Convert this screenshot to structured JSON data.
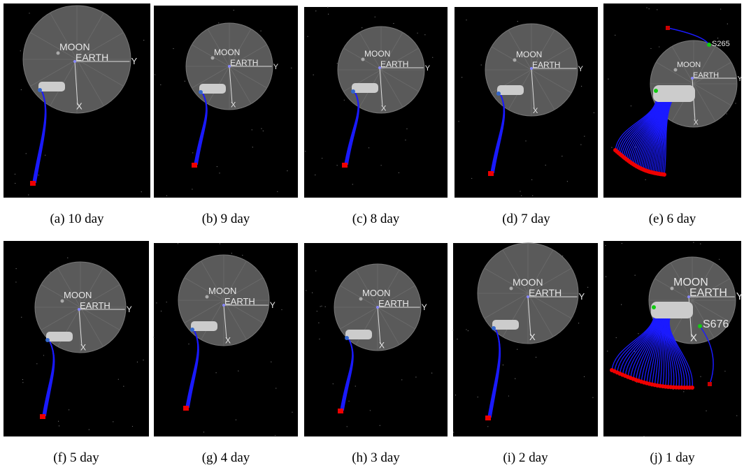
{
  "panels": [
    {
      "caption": "(a) 10 day",
      "labels": [
        "MOON",
        "EARTH",
        "Y",
        "X"
      ]
    },
    {
      "caption": "(b) 9 day",
      "labels": [
        "MOON",
        "EARTH",
        "Y",
        "X"
      ]
    },
    {
      "caption": "(c) 8 day",
      "labels": [
        "MOON",
        "EARTH",
        "Y",
        "X"
      ]
    },
    {
      "caption": "(d) 7 day",
      "labels": [
        "MOON",
        "EARTH",
        "Y",
        "X"
      ]
    },
    {
      "caption": "(e) 6 day",
      "labels": [
        "MOON",
        "EARTH",
        "Y",
        "X",
        "S265"
      ]
    },
    {
      "caption": "(f) 5 day",
      "labels": [
        "MOON",
        "EARTH",
        "Y",
        "X"
      ]
    },
    {
      "caption": "(g) 4 day",
      "labels": [
        "MOON",
        "EARTH",
        "Y",
        "X"
      ]
    },
    {
      "caption": "(h) 3 day",
      "labels": [
        "MOON",
        "EARTH",
        "Y",
        "X"
      ]
    },
    {
      "caption": "(i) 2 day",
      "labels": [
        "MOON",
        "EARTH",
        "Y",
        "X"
      ]
    },
    {
      "caption": "(j) 1 day",
      "labels": [
        "MOON",
        "EARTH",
        "Y",
        "X",
        "S676"
      ]
    }
  ]
}
